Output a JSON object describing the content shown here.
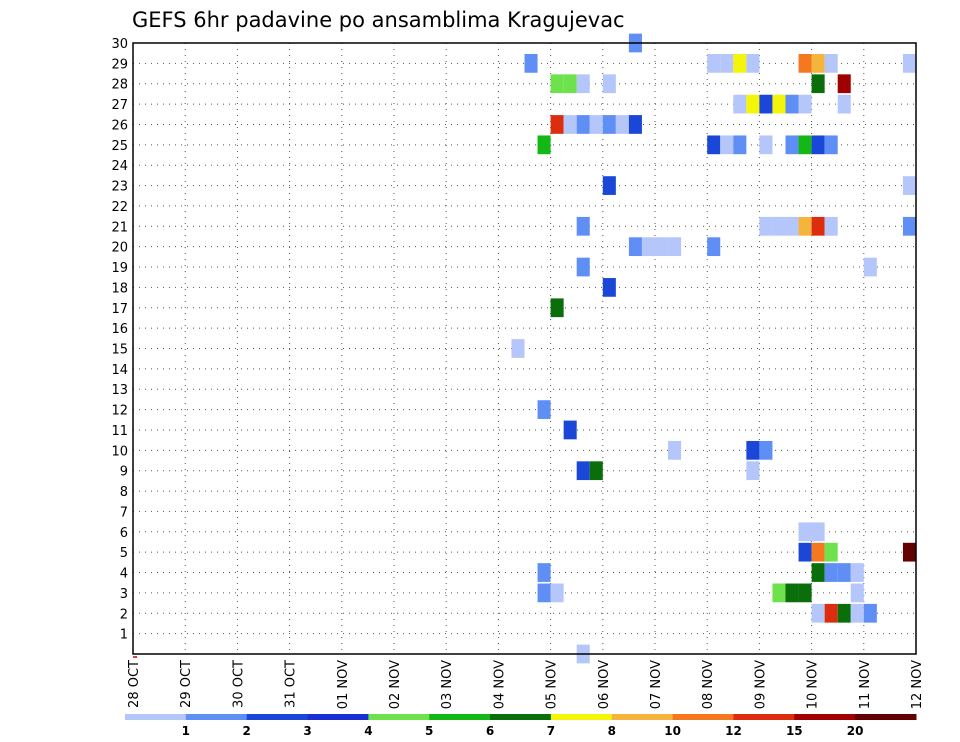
{
  "chart_data": {
    "type": "heatmap",
    "title": "GEFS 6hr padavine po ansamblima Kragujevac",
    "xlabel": "",
    "ylabel": "",
    "x_tick_labels": [
      "28 OCT",
      "29 OCT",
      "30 OCT",
      "31 OCT",
      "01 NOV",
      "02 NOV",
      "03 NOV",
      "04 NOV",
      "05 NOV",
      "06 NOV",
      "07 NOV",
      "08 NOV",
      "09 NOV",
      "10 NOV",
      "11 NOV",
      "12 NOV"
    ],
    "y_tick_labels": [
      "1",
      "2",
      "3",
      "4",
      "5",
      "6",
      "7",
      "8",
      "9",
      "10",
      "11",
      "12",
      "13",
      "14",
      "15",
      "16",
      "17",
      "18",
      "19",
      "20",
      "21",
      "22",
      "23",
      "24",
      "25",
      "26",
      "27",
      "28",
      "29",
      "30"
    ],
    "xlim": [
      0,
      15
    ],
    "ylim": [
      0,
      30
    ],
    "x_step_days": 0.25,
    "grid": true,
    "legend_levels": [
      "1",
      "2",
      "3",
      "4",
      "5",
      "6",
      "7",
      "8",
      "10",
      "12",
      "15",
      "20"
    ],
    "legend_colors": [
      "#b4c6fa",
      "#5f8ef5",
      "#1b47d8",
      "#1a2ed4",
      "#6ee24c",
      "#14b814",
      "#0a6e0a",
      "#f5f50a",
      "#f5b43c",
      "#f5781e",
      "#dc2d0f",
      "#a00000",
      "#640000"
    ],
    "legend_placement": "bottom",
    "cells": [
      {
        "member": 30,
        "day": 9.5,
        "bin": 1
      },
      {
        "member": 29,
        "day": 7.5,
        "bin": 1
      },
      {
        "member": 29,
        "day": 11.0,
        "bin": 0
      },
      {
        "member": 29,
        "day": 11.25,
        "bin": 0
      },
      {
        "member": 29,
        "day": 11.5,
        "bin": 7
      },
      {
        "member": 29,
        "day": 11.75,
        "bin": 0
      },
      {
        "member": 29,
        "day": 12.75,
        "bin": 9
      },
      {
        "member": 29,
        "day": 13.0,
        "bin": 8
      },
      {
        "member": 29,
        "day": 13.25,
        "bin": 0
      },
      {
        "member": 29,
        "day": 14.75,
        "bin": 0
      },
      {
        "member": 28,
        "day": 8.0,
        "bin": 4
      },
      {
        "member": 28,
        "day": 8.25,
        "bin": 4
      },
      {
        "member": 28,
        "day": 8.5,
        "bin": 0
      },
      {
        "member": 28,
        "day": 9.0,
        "bin": 0
      },
      {
        "member": 28,
        "day": 13.0,
        "bin": 6
      },
      {
        "member": 28,
        "day": 13.5,
        "bin": 11
      },
      {
        "member": 27,
        "day": 11.5,
        "bin": 0
      },
      {
        "member": 27,
        "day": 11.75,
        "bin": 7
      },
      {
        "member": 27,
        "day": 12.0,
        "bin": 2
      },
      {
        "member": 27,
        "day": 12.25,
        "bin": 7
      },
      {
        "member": 27,
        "day": 12.5,
        "bin": 1
      },
      {
        "member": 27,
        "day": 12.75,
        "bin": 0
      },
      {
        "member": 27,
        "day": 13.5,
        "bin": 0
      },
      {
        "member": 26,
        "day": 8.0,
        "bin": 10
      },
      {
        "member": 26,
        "day": 8.25,
        "bin": 0
      },
      {
        "member": 26,
        "day": 8.5,
        "bin": 1
      },
      {
        "member": 26,
        "day": 8.75,
        "bin": 0
      },
      {
        "member": 26,
        "day": 9.0,
        "bin": 1
      },
      {
        "member": 26,
        "day": 9.25,
        "bin": 0
      },
      {
        "member": 26,
        "day": 9.5,
        "bin": 2
      },
      {
        "member": 25,
        "day": 7.75,
        "bin": 5
      },
      {
        "member": 25,
        "day": 11.0,
        "bin": 2
      },
      {
        "member": 25,
        "day": 11.25,
        "bin": 0
      },
      {
        "member": 25,
        "day": 11.5,
        "bin": 1
      },
      {
        "member": 25,
        "day": 12.0,
        "bin": 0
      },
      {
        "member": 25,
        "day": 12.5,
        "bin": 1
      },
      {
        "member": 25,
        "day": 12.75,
        "bin": 5
      },
      {
        "member": 25,
        "day": 13.0,
        "bin": 2
      },
      {
        "member": 25,
        "day": 13.25,
        "bin": 1
      },
      {
        "member": 23,
        "day": 9.0,
        "bin": 2
      },
      {
        "member": 23,
        "day": 14.75,
        "bin": 0
      },
      {
        "member": 21,
        "day": 8.5,
        "bin": 1
      },
      {
        "member": 21,
        "day": 12.0,
        "bin": 0
      },
      {
        "member": 21,
        "day": 12.25,
        "bin": 0
      },
      {
        "member": 21,
        "day": 12.5,
        "bin": 0
      },
      {
        "member": 21,
        "day": 12.75,
        "bin": 8
      },
      {
        "member": 21,
        "day": 13.0,
        "bin": 10
      },
      {
        "member": 21,
        "day": 13.25,
        "bin": 0
      },
      {
        "member": 21,
        "day": 14.75,
        "bin": 1
      },
      {
        "member": 20,
        "day": 9.5,
        "bin": 1
      },
      {
        "member": 20,
        "day": 9.75,
        "bin": 0
      },
      {
        "member": 20,
        "day": 10.0,
        "bin": 0
      },
      {
        "member": 20,
        "day": 10.25,
        "bin": 0
      },
      {
        "member": 20,
        "day": 11.0,
        "bin": 1
      },
      {
        "member": 19,
        "day": 8.5,
        "bin": 1
      },
      {
        "member": 19,
        "day": 14.0,
        "bin": 0
      },
      {
        "member": 18,
        "day": 9.0,
        "bin": 2
      },
      {
        "member": 17,
        "day": 8.0,
        "bin": 6
      },
      {
        "member": 15,
        "day": 7.25,
        "bin": 0
      },
      {
        "member": 12,
        "day": 7.75,
        "bin": 1
      },
      {
        "member": 11,
        "day": 8.25,
        "bin": 2
      },
      {
        "member": 10,
        "day": 10.25,
        "bin": 0
      },
      {
        "member": 10,
        "day": 11.75,
        "bin": 2
      },
      {
        "member": 10,
        "day": 12.0,
        "bin": 1
      },
      {
        "member": 9,
        "day": 8.5,
        "bin": 2
      },
      {
        "member": 9,
        "day": 8.75,
        "bin": 6
      },
      {
        "member": 9,
        "day": 11.75,
        "bin": 0
      },
      {
        "member": 6,
        "day": 12.75,
        "bin": 0
      },
      {
        "member": 6,
        "day": 13.0,
        "bin": 0
      },
      {
        "member": 5,
        "day": 12.75,
        "bin": 2
      },
      {
        "member": 5,
        "day": 13.0,
        "bin": 9
      },
      {
        "member": 5,
        "day": 13.25,
        "bin": 4
      },
      {
        "member": 5,
        "day": 14.75,
        "bin": 12
      },
      {
        "member": 4,
        "day": 7.75,
        "bin": 1
      },
      {
        "member": 4,
        "day": 13.0,
        "bin": 6
      },
      {
        "member": 4,
        "day": 13.25,
        "bin": 1
      },
      {
        "member": 4,
        "day": 13.5,
        "bin": 1
      },
      {
        "member": 4,
        "day": 13.75,
        "bin": 0
      },
      {
        "member": 3,
        "day": 7.75,
        "bin": 1
      },
      {
        "member": 3,
        "day": 8.0,
        "bin": 0
      },
      {
        "member": 3,
        "day": 12.25,
        "bin": 4
      },
      {
        "member": 3,
        "day": 12.5,
        "bin": 6
      },
      {
        "member": 3,
        "day": 12.75,
        "bin": 6
      },
      {
        "member": 3,
        "day": 13.75,
        "bin": 0
      },
      {
        "member": 2,
        "day": 13.0,
        "bin": 0
      },
      {
        "member": 2,
        "day": 13.25,
        "bin": 10
      },
      {
        "member": 2,
        "day": 13.5,
        "bin": 6
      },
      {
        "member": 2,
        "day": 13.75,
        "bin": 0
      },
      {
        "member": 2,
        "day": 14.0,
        "bin": 1
      },
      {
        "member": 0,
        "day": 8.5,
        "bin": 0
      }
    ]
  }
}
